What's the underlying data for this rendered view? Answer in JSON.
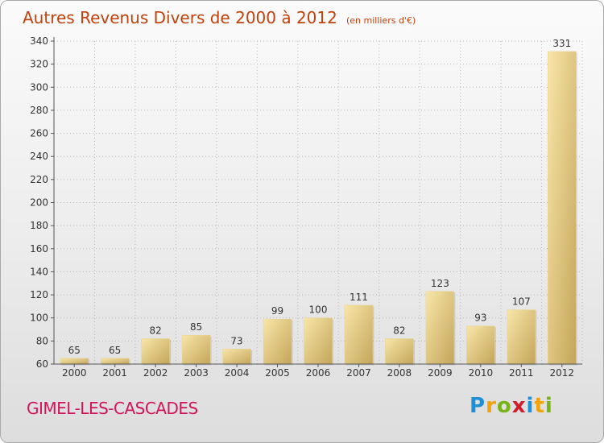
{
  "header": {
    "title": "Autres Revenus Divers de 2000 à 2012",
    "subtitle": "(en milliers d'€)"
  },
  "commune": "GIMEL-LES-CASCADES",
  "logo": {
    "text": "Proxiti",
    "letters": [
      {
        "ch": "P",
        "color": "#1f8fd6"
      },
      {
        "ch": "r",
        "color": "#f0a30a"
      },
      {
        "ch": "o",
        "color": "#7ab317"
      },
      {
        "ch": "x",
        "color": "#d11c2c"
      },
      {
        "ch": "i",
        "color": "#1f8fd6"
      },
      {
        "ch": "t",
        "color": "#f0a30a"
      },
      {
        "ch": "i",
        "color": "#7ab317"
      }
    ]
  },
  "chart_data": {
    "type": "bar",
    "title": "Autres Revenus Divers de 2000 à 2012",
    "xlabel": "",
    "ylabel": "",
    "categories": [
      "2000",
      "2001",
      "2002",
      "2003",
      "2004",
      "2005",
      "2006",
      "2007",
      "2008",
      "2009",
      "2010",
      "2011",
      "2012"
    ],
    "values": [
      65,
      65,
      82,
      85,
      73,
      99,
      100,
      111,
      82,
      123,
      93,
      107,
      331
    ],
    "ylim": [
      60,
      340
    ],
    "yticks": [
      60,
      80,
      100,
      120,
      140,
      160,
      180,
      200,
      220,
      240,
      260,
      280,
      300,
      320,
      340
    ],
    "grid": true,
    "colors": {
      "bar_light": "#f6e2a0",
      "bar_dark": "#c8aa5e",
      "grid": "#b8b8b8",
      "title": "#c2410c",
      "commune": "#d4145a"
    }
  }
}
